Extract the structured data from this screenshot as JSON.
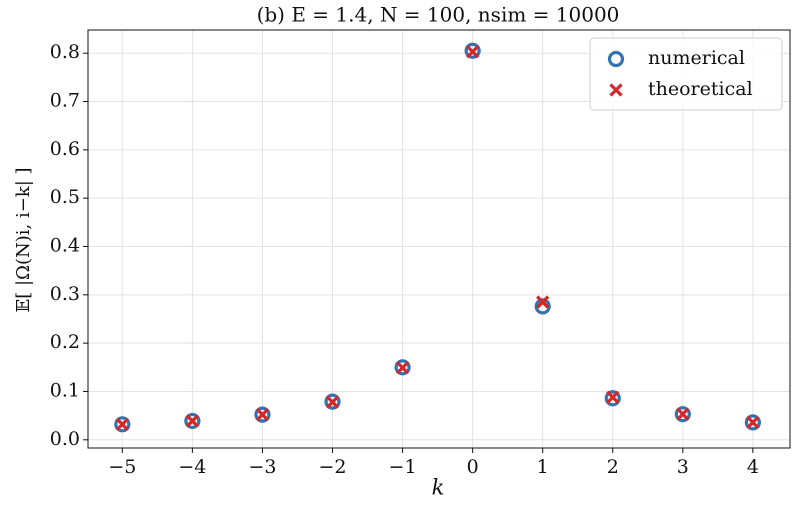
{
  "chart_data": {
    "type": "scatter",
    "title": "(b)  E = 1.4,  N = 100,  nsim = 10000",
    "x_label": "k",
    "y_label": "𝔼[ |Ω(N)i, i−k| ]",
    "x": [
      -5,
      -4,
      -3,
      -2,
      -1,
      0,
      1,
      2,
      3,
      4
    ],
    "series": [
      {
        "name": "numerical",
        "color": "#3274b0",
        "marker": "circle",
        "values": [
          0.032,
          0.039,
          0.052,
          0.079,
          0.15,
          0.805,
          0.276,
          0.086,
          0.053,
          0.036
        ]
      },
      {
        "name": "theoretical",
        "color": "#d62728",
        "marker": "cross",
        "values": [
          0.032,
          0.039,
          0.052,
          0.078,
          0.149,
          0.803,
          0.285,
          0.088,
          0.053,
          0.036
        ]
      }
    ],
    "xlim": [
      -5.49,
      4.53
    ],
    "ylim": [
      -0.017,
      0.848
    ],
    "xticks": [
      {
        "value": -5,
        "label": "−5"
      },
      {
        "value": -4,
        "label": "−4"
      },
      {
        "value": -3,
        "label": "−3"
      },
      {
        "value": -2,
        "label": "−2"
      },
      {
        "value": -1,
        "label": "−1"
      },
      0,
      1,
      2,
      3,
      4
    ],
    "yticks": [
      {
        "value": 0,
        "label": "0.0"
      },
      0.1,
      0.2,
      0.3,
      0.4,
      0.5,
      0.6,
      0.7,
      0.8
    ],
    "grid": true,
    "legend": "upper-right"
  }
}
